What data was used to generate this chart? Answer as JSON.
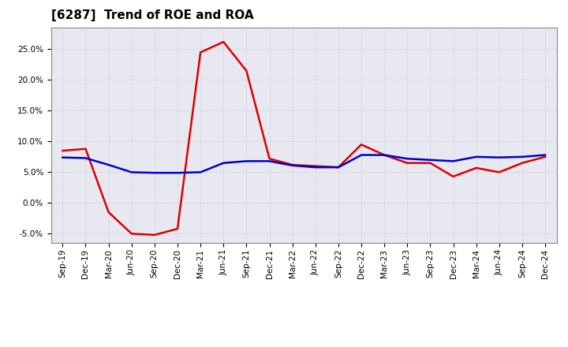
{
  "title": "[6287]  Trend of ROE and ROA",
  "x_labels": [
    "Sep-19",
    "Dec-19",
    "Mar-20",
    "Jun-20",
    "Sep-20",
    "Dec-20",
    "Mar-21",
    "Jun-21",
    "Sep-21",
    "Dec-21",
    "Mar-22",
    "Jun-22",
    "Sep-22",
    "Dec-22",
    "Mar-23",
    "Jun-23",
    "Sep-23",
    "Dec-23",
    "Mar-24",
    "Jun-24",
    "Sep-24",
    "Dec-24"
  ],
  "roe": [
    8.5,
    8.8,
    -1.5,
    -5.0,
    -5.2,
    -4.2,
    24.5,
    26.2,
    21.5,
    7.2,
    6.2,
    6.0,
    5.8,
    9.5,
    7.8,
    6.5,
    6.5,
    4.3,
    5.7,
    5.0,
    6.5,
    7.5
  ],
  "roa": [
    7.4,
    7.3,
    6.2,
    5.0,
    4.9,
    4.9,
    5.0,
    6.5,
    6.8,
    6.8,
    6.1,
    5.8,
    5.8,
    7.8,
    7.8,
    7.2,
    7.0,
    6.8,
    7.5,
    7.4,
    7.5,
    7.8
  ],
  "roe_color": "#dd0000",
  "roa_color": "#0000cc",
  "background_color": "#ffffff",
  "plot_bg_color": "#e8e8f0",
  "grid_color": "#bbbbcc",
  "ylim": [
    -6.5,
    28.5
  ],
  "yticks": [
    -5.0,
    0.0,
    5.0,
    10.0,
    15.0,
    20.0,
    25.0
  ],
  "line_width": 1.8,
  "title_fontsize": 11,
  "tick_fontsize": 7.5
}
